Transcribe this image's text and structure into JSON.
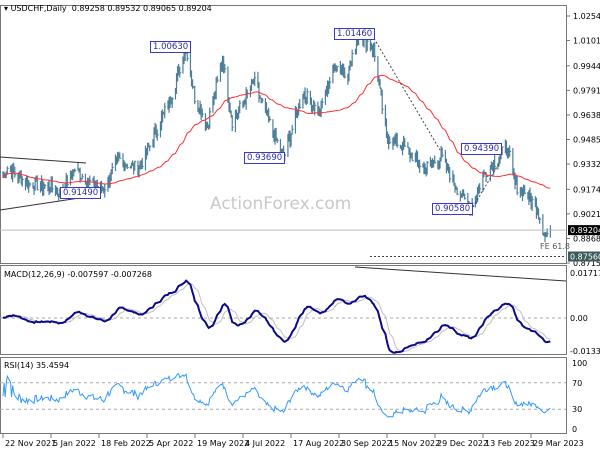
{
  "header": {
    "symbol": "USDCHF,Daily",
    "open": "0.89258",
    "high": "0.89532",
    "low": "0.89065",
    "close": "0.89204"
  },
  "watermark": "ActionForex.com",
  "chart_data": [
    {
      "type": "ohlc",
      "name": "USDCHF Daily",
      "y_ticks": [
        "1.02545",
        "1.01015",
        "0.99440",
        "0.97910",
        "0.96380",
        "0.94850",
        "0.93320",
        "0.91745",
        "0.90215",
        "0.88685",
        "0.87155"
      ],
      "ylim": [
        0.87,
        1.03
      ],
      "current_price": "0.89204",
      "level_line": "0.87560",
      "level_label": "FE 61.8",
      "annotations": [
        "1.00630",
        "1.01460",
        "0.93690",
        "0.91490",
        "0.90580",
        "0.94390"
      ],
      "moving_average_color": "#ff3030",
      "bar_color": "#4d7e99",
      "approx_close_path": [
        [
          "2021-11-22",
          0.925
        ],
        [
          "2021-11-26",
          0.931
        ],
        [
          "2021-12-15",
          0.921
        ],
        [
          "2022-01-05",
          0.919
        ],
        [
          "2022-01-14",
          0.9149
        ],
        [
          "2022-01-28",
          0.93
        ],
        [
          "2022-02-10",
          0.922
        ],
        [
          "2022-02-24",
          0.918
        ],
        [
          "2022-03-10",
          0.936
        ],
        [
          "2022-03-28",
          0.93
        ],
        [
          "2022-04-05",
          0.94
        ],
        [
          "2022-04-28",
          0.975
        ],
        [
          "2022-05-12",
          1.0063
        ],
        [
          "2022-05-20",
          0.975
        ],
        [
          "2022-06-01",
          0.958
        ],
        [
          "2022-06-15",
          0.998
        ],
        [
          "2022-06-24",
          0.96
        ],
        [
          "2022-07-08",
          0.976
        ],
        [
          "2022-07-14",
          0.985
        ],
        [
          "2022-08-01",
          0.953
        ],
        [
          "2022-08-11",
          0.9369
        ],
        [
          "2022-08-29",
          0.978
        ],
        [
          "2022-09-13",
          0.965
        ],
        [
          "2022-09-28",
          0.995
        ],
        [
          "2022-10-10",
          0.99
        ],
        [
          "2022-10-21",
          1.0146
        ],
        [
          "2022-11-03",
          1.005
        ],
        [
          "2022-11-15",
          0.95
        ],
        [
          "2022-11-30",
          0.945
        ],
        [
          "2022-12-20",
          0.93
        ],
        [
          "2023-01-05",
          0.938
        ],
        [
          "2023-01-20",
          0.918
        ],
        [
          "2023-02-01",
          0.9058
        ],
        [
          "2023-02-15",
          0.928
        ],
        [
          "2023-03-08",
          0.9439
        ],
        [
          "2023-03-15",
          0.92
        ],
        [
          "2023-03-24",
          0.916
        ],
        [
          "2023-04-05",
          0.905
        ],
        [
          "2023-04-12",
          0.888
        ],
        [
          "2023-04-17",
          0.892
        ]
      ]
    },
    {
      "type": "line",
      "name": "MACD(12,26,9)",
      "values_text": "-0.007597 -0.007268",
      "y_ticks": [
        "0.017176",
        "0.00",
        "-0.01334"
      ],
      "ylim": [
        -0.01334,
        0.017176
      ]
    },
    {
      "type": "line",
      "name": "RSI(14)",
      "value_text": "35.4594",
      "y_ticks": [
        "100",
        "70",
        "30",
        "0"
      ],
      "ylim": [
        0,
        100
      ]
    }
  ],
  "x_ticks": [
    "22 Nov 2021",
    "5 Jan 2022",
    "18 Feb 2022",
    "5 Apr 2022",
    "19 May 2022",
    "4 Jul 2022",
    "17 Aug 2022",
    "30 Sep 2022",
    "15 Nov 2022",
    "29 Dec 2022",
    "13 Feb 2023",
    "29 Mar 2023"
  ]
}
